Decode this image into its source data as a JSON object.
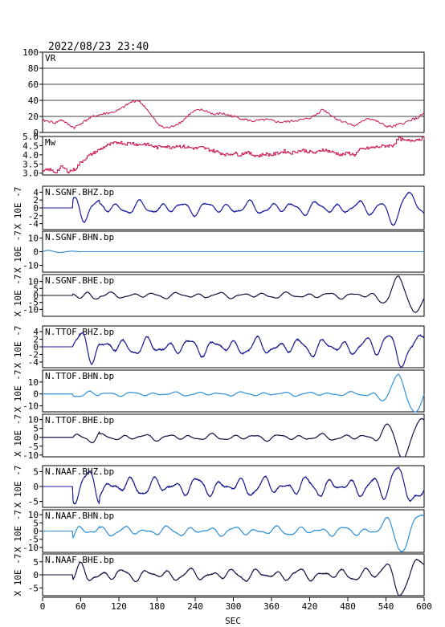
{
  "title": "2022/08/23 23:40",
  "x_axis": {
    "label": "SEC",
    "range": [
      0,
      600
    ],
    "ticks": [
      0,
      60,
      120,
      180,
      240,
      300,
      360,
      420,
      480,
      540,
      600
    ]
  },
  "chart_data": [
    {
      "type": "line",
      "panel": "vr",
      "label": "VR",
      "ylim": [
        0,
        100
      ],
      "ticks": [
        0,
        20,
        40,
        60,
        80,
        100
      ],
      "grid": true,
      "color": "#c8164e",
      "x": [
        0,
        10,
        20,
        30,
        40,
        50,
        60,
        70,
        80,
        90,
        100,
        110,
        120,
        130,
        140,
        150,
        160,
        170,
        180,
        190,
        200,
        210,
        220,
        230,
        240,
        250,
        260,
        270,
        280,
        290,
        300,
        310,
        320,
        330,
        340,
        350,
        360,
        370,
        380,
        390,
        400,
        410,
        420,
        430,
        440,
        450,
        460,
        470,
        480,
        490,
        500,
        510,
        520,
        530,
        540,
        550,
        560,
        570,
        580,
        590,
        600
      ],
      "y": [
        15,
        14,
        12,
        16,
        10,
        6,
        11,
        16,
        20,
        22,
        24,
        25,
        28,
        33,
        38,
        40,
        33,
        22,
        12,
        6,
        6,
        10,
        14,
        22,
        27,
        28,
        26,
        22,
        24,
        22,
        20,
        18,
        16,
        14,
        15,
        16,
        15,
        13,
        13,
        14,
        15,
        16,
        18,
        22,
        29,
        24,
        18,
        14,
        12,
        8,
        12,
        18,
        16,
        12,
        8,
        7,
        10,
        12,
        16,
        18,
        24
      ]
    },
    {
      "type": "line",
      "panel": "mw",
      "label": "Mw",
      "ylim": [
        2.9,
        5.0
      ],
      "ticks": [
        3.0,
        3.5,
        4.0,
        4.5,
        5.0
      ],
      "grid": false,
      "color": "#c8164e",
      "step": true,
      "x": [
        0,
        10,
        20,
        30,
        40,
        50,
        60,
        70,
        80,
        90,
        100,
        110,
        120,
        130,
        140,
        150,
        160,
        170,
        180,
        190,
        200,
        210,
        220,
        230,
        240,
        250,
        260,
        270,
        280,
        290,
        300,
        310,
        320,
        330,
        340,
        350,
        360,
        370,
        380,
        390,
        400,
        410,
        420,
        430,
        440,
        450,
        460,
        470,
        480,
        490,
        500,
        510,
        520,
        530,
        540,
        550,
        560,
        570,
        580,
        590,
        600
      ],
      "y": [
        3.1,
        3.2,
        3.05,
        3.35,
        3.1,
        3.2,
        3.6,
        3.9,
        4.1,
        4.3,
        4.5,
        4.6,
        4.7,
        4.6,
        4.65,
        4.55,
        4.6,
        4.5,
        4.4,
        4.5,
        4.4,
        4.5,
        4.45,
        4.4,
        4.35,
        4.4,
        4.3,
        4.2,
        4.1,
        4.0,
        4.1,
        4.0,
        4.15,
        4.0,
        3.95,
        4.05,
        4.0,
        4.1,
        4.2,
        4.1,
        4.2,
        4.25,
        4.15,
        4.1,
        4.3,
        4.2,
        4.1,
        4.0,
        4.1,
        4.0,
        4.3,
        4.35,
        4.4,
        4.45,
        4.5,
        4.5,
        4.9,
        4.75,
        4.8,
        4.85,
        4.9
      ]
    },
    {
      "type": "line",
      "panel": "wave",
      "label": "N.SGNF.BHZ.bp",
      "ylabel": "X 10E -7",
      "ylim": [
        -5.5,
        5.5
      ],
      "ticks": [
        -4,
        -2,
        0,
        2,
        4
      ],
      "color": "#1a1aa0",
      "obs_color": "#1a1a9a",
      "onset": 48,
      "amp": 1.2,
      "late": 4.5,
      "seed": 3
    },
    {
      "type": "line",
      "panel": "wave",
      "label": "N.SGNF.BHN.bp",
      "ylabel": "X 10E -7",
      "ylim": [
        -15,
        15
      ],
      "ticks": [
        -10,
        0,
        10
      ],
      "color": "#2f8fd8",
      "obs_color": "#2f8fd8",
      "onset": 0,
      "amp": 0.2,
      "late": 0.2,
      "seed": 5,
      "flat": true
    },
    {
      "type": "line",
      "panel": "wave",
      "label": "N.SGNF.BHE.bp",
      "ylabel": "X 10E -7",
      "ylim": [
        -15,
        15
      ],
      "ticks": [
        -10,
        -5,
        0,
        5,
        10
      ],
      "color": "#111133",
      "obs_color": "#1a1a9a",
      "onset": 48,
      "amp": 1.5,
      "late": 12,
      "seed": 7
    },
    {
      "type": "line",
      "panel": "wave",
      "label": "N.TTOF.BHZ.bp",
      "ylabel": "X 10E -7",
      "ylim": [
        -5.5,
        5.5
      ],
      "ticks": [
        -4,
        -2,
        0,
        2,
        4
      ],
      "color": "#1a1aa0",
      "obs_color": "#111133",
      "onset": 48,
      "amp": 1.6,
      "late": 4.8,
      "seed": 11
    },
    {
      "type": "line",
      "panel": "wave",
      "label": "N.TTOF.BHN.bp",
      "ylabel": "X 10E -7",
      "ylim": [
        -15,
        20
      ],
      "ticks": [
        -10,
        0,
        10
      ],
      "color": "#2f8fd8",
      "obs_color": "#2f8fd8",
      "onset": 48,
      "amp": 1.2,
      "late": 16,
      "seed": 13
    },
    {
      "type": "line",
      "panel": "wave",
      "label": "N.TTOF.BHE.bp",
      "ylabel": "X 10E -7",
      "ylim": [
        -11,
        13
      ],
      "ticks": [
        -10,
        -5,
        0,
        5,
        10
      ],
      "color": "#111133",
      "obs_color": "#1a1a9a",
      "onset": 48,
      "amp": 1.3,
      "late": 11,
      "seed": 17
    },
    {
      "type": "line",
      "panel": "wave",
      "label": "N.NAAF.BHZ.bp",
      "ylabel": "X 10E -7",
      "ylim": [
        -7,
        7
      ],
      "ticks": [
        -5,
        0,
        5
      ],
      "color": "#1a1aa0",
      "obs_color": "#111133",
      "onset": 48,
      "amp": 2.2,
      "late": 6.5,
      "seed": 19
    },
    {
      "type": "line",
      "panel": "wave",
      "label": "N.NAAF.BHN.bp",
      "ylabel": "X 10E -7",
      "ylim": [
        -13,
        13
      ],
      "ticks": [
        -10,
        -5,
        0,
        5,
        10
      ],
      "color": "#2f8fd8",
      "obs_color": "#2f8fd8",
      "onset": 48,
      "amp": 2.0,
      "late": 11,
      "seed": 23
    },
    {
      "type": "line",
      "panel": "wave",
      "label": "N.NAAF.BHE.bp",
      "ylabel": "X 10E -7",
      "ylim": [
        -8,
        8
      ],
      "ticks": [
        -5,
        0,
        5
      ],
      "color": "#111133",
      "obs_color": "#1a1a9a",
      "onset": 48,
      "amp": 1.6,
      "late": 7.5,
      "seed": 29
    }
  ]
}
